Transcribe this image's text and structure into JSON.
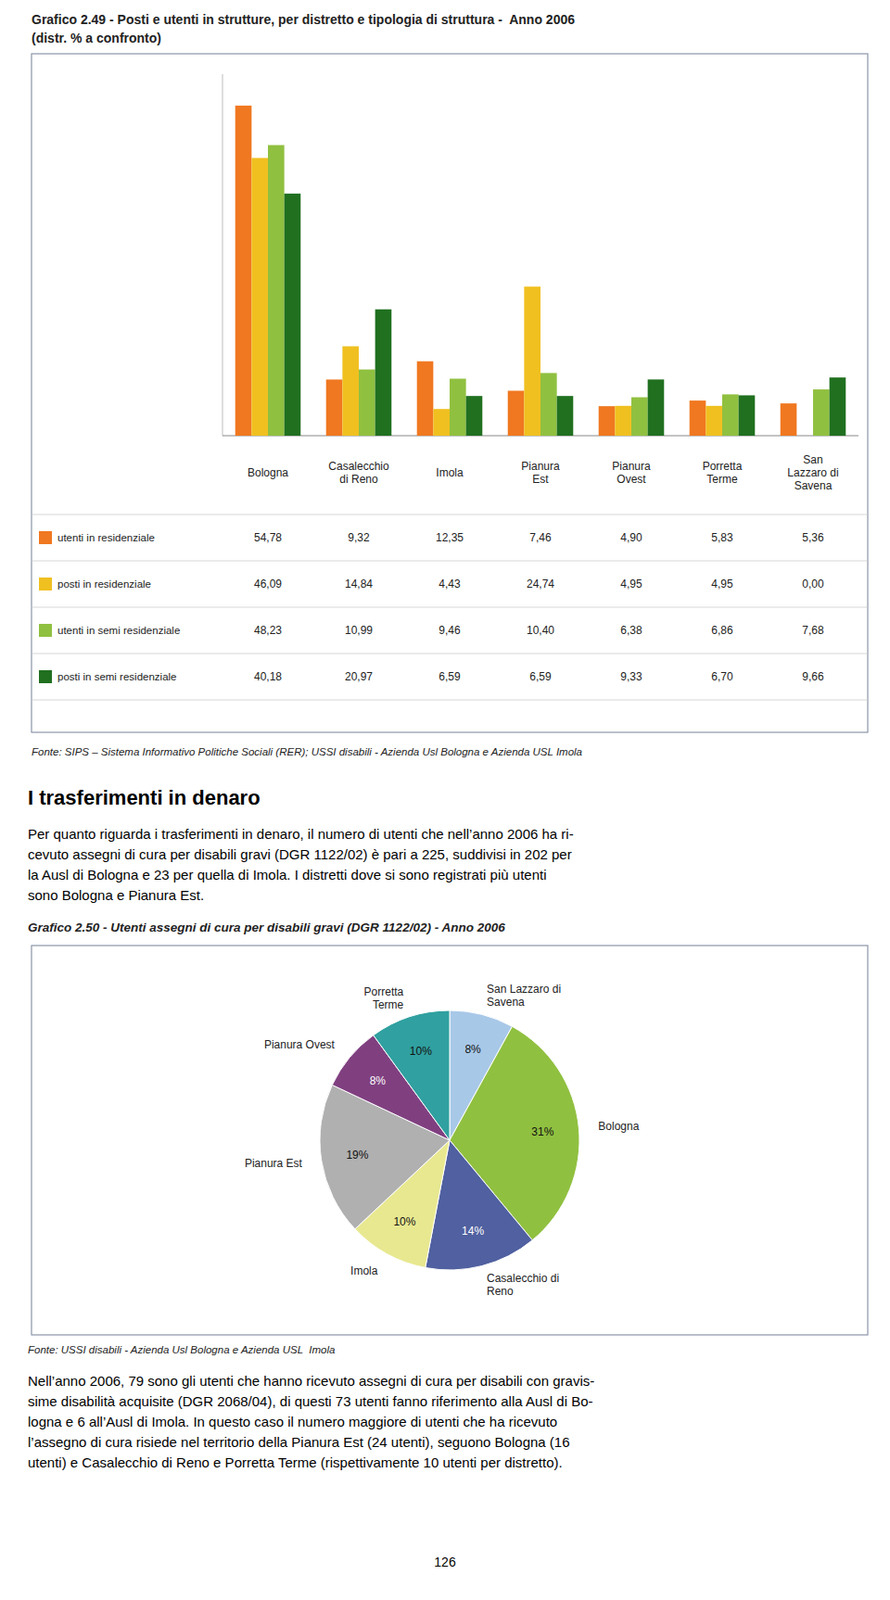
{
  "chart_data": [
    {
      "type": "bar",
      "title": "Grafico 2.49 - Posti e utenti in strutture, per distretto e tipologia di struttura -  Anno 2006",
      "subtitle": "(distr. % a confronto)",
      "categories": [
        "Bologna",
        "Casalecchio\ndi Reno",
        "Imola",
        "Pianura\nEst",
        "Pianura\nOvest",
        "Porretta\nTerme",
        "San\nLazzaro di\nSavena"
      ],
      "series": [
        {
          "name": "utenti in residenziale",
          "color": "#F07820",
          "values": [
            54.78,
            9.32,
            12.35,
            7.46,
            4.9,
            5.83,
            5.36
          ],
          "value_labels": [
            "54,78",
            "9,32",
            "12,35",
            "7,46",
            "4,90",
            "5,83",
            "5,36"
          ]
        },
        {
          "name": "posti in residenziale",
          "color": "#F0C020",
          "values": [
            46.09,
            14.84,
            4.43,
            24.74,
            4.95,
            4.95,
            0.0
          ],
          "value_labels": [
            "46,09",
            "14,84",
            "4,43",
            "24,74",
            "4,95",
            "4,95",
            "0,00"
          ]
        },
        {
          "name": "utenti in semi residenziale",
          "color": "#90C040",
          "values": [
            48.23,
            10.99,
            9.46,
            10.4,
            6.38,
            6.86,
            7.68
          ],
          "value_labels": [
            "48,23",
            "10,99",
            "9,46",
            "10,40",
            "6,38",
            "6,86",
            "7,68"
          ]
        },
        {
          "name": "posti in semi residenziale",
          "color": "#207020",
          "values": [
            40.18,
            20.97,
            6.59,
            6.59,
            9.33,
            6.7,
            9.66
          ],
          "value_labels": [
            "40,18",
            "20,97",
            "6,59",
            "6,59",
            "9,33",
            "6,70",
            "9,66"
          ]
        }
      ],
      "ylim": [
        0,
        60
      ],
      "tick_labels": "x",
      "source": "Fonte: SIPS – Sistema Informativo Politiche Sociali (RER); USSI disabili - Azienda Usl Bologna e Azienda USL Imola"
    },
    {
      "type": "pie",
      "title": "Grafico 2.50 - Utenti assegni di cura per disabili gravi (DGR 1122/02) - Anno 2006",
      "categories": [
        "San Lazzaro di\nSavena",
        "Bologna",
        "Casalecchio di\nReno",
        "Imola",
        "Pianura Est",
        "Pianura Ovest",
        "Porretta\nTerme"
      ],
      "values": [
        8,
        31,
        14,
        10,
        19,
        8,
        10
      ],
      "value_labels": [
        "8%",
        "31%",
        "14%",
        "10%",
        "19%",
        "8%",
        "10%"
      ],
      "colors": [
        "#A8C8E8",
        "#90C040",
        "#5060A0",
        "#E8E890",
        "#B0B0B0",
        "#804080",
        "#30A0A0"
      ],
      "data_labels": true,
      "source": "Fonte: USSI disabili - Azienda Usl Bologna e Azienda USL  Imola"
    }
  ],
  "section_title": "I trasferimenti in denaro",
  "paragraphs": [
    [
      "Per quanto riguarda i trasferimenti in denaro, il numero di utenti che nell’anno 2006 ha ri-",
      "cevuto assegni di cura per disabili gravi (DGR 1122/02) è pari a 225, suddivisi in 202 per",
      "la Ausl di Bologna e 23 per quella di Imola. I distretti dove si sono registrati più utenti",
      "sono Bologna e Pianura Est."
    ],
    [
      "Nell’anno 2006, 79 sono gli utenti che hanno ricevuto assegni di cura per disabili con gravis-",
      "sime disabilità acquisite (DGR 2068/04), di questi 73 utenti fanno riferimento alla Ausl di Bo-",
      "logna e 6 all’Ausl di Imola. In questo caso il numero maggiore di utenti che ha ricevuto",
      "l’assegno di cura risiede nel territorio della Pianura Est (24 utenti), seguono Bologna (16",
      "utenti) e Casalecchio di Reno e Porretta Terme (rispettivamente 10 utenti per distretto)."
    ]
  ],
  "page_number": "126"
}
